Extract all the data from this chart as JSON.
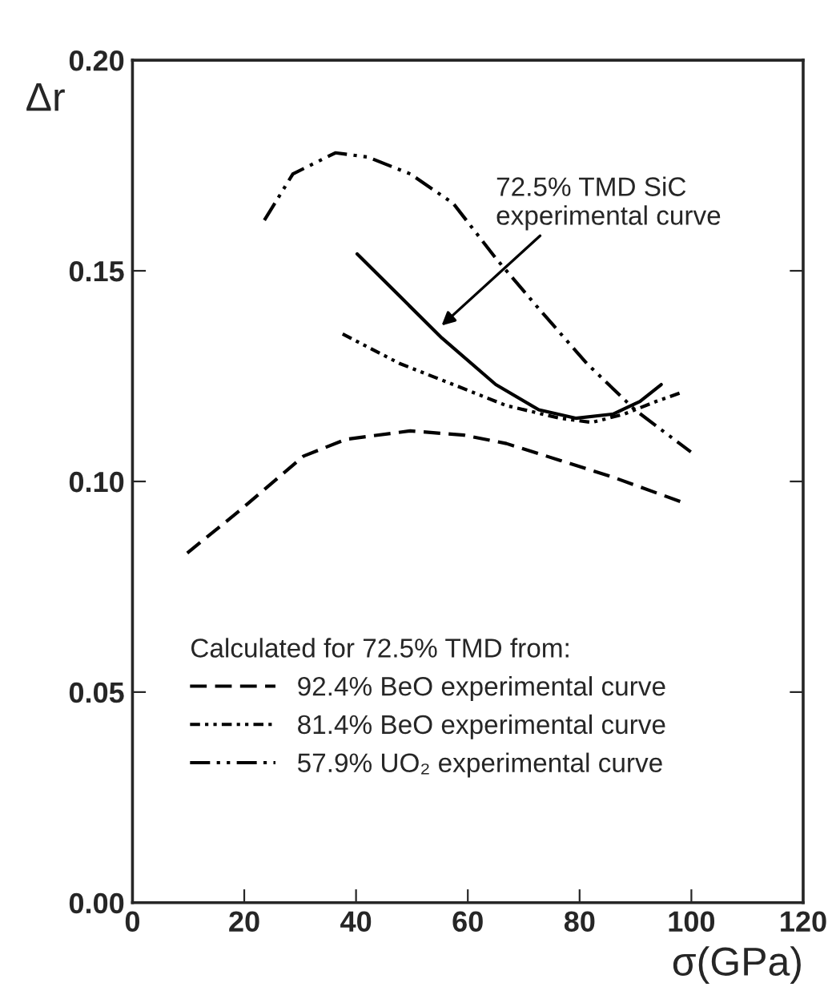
{
  "chart_data": {
    "type": "line",
    "xlabel": "σ(GPa)",
    "ylabel": "Δr",
    "legend_title": "Calculated for 72.5% TMD from:",
    "xlim": [
      0,
      120
    ],
    "xticks": [
      0,
      20,
      40,
      60,
      80,
      100,
      120
    ],
    "ylim": [
      0.0,
      0.2
    ],
    "yticks": [
      {
        "value": 0.0,
        "label": "0.00"
      },
      {
        "value": 0.05,
        "label": "0.05"
      },
      {
        "value": 0.1,
        "label": "0.10"
      },
      {
        "value": 0.15,
        "label": "0.15"
      },
      {
        "value": 0.2,
        "label": "0.20"
      }
    ],
    "grid": false,
    "legend": "bottom left",
    "series": [
      {
        "name": "92.4% BeO experimental curve",
        "color": "#000000",
        "line_style": "dashed",
        "x": [
          9.8,
          19.1,
          30.6,
          38.2,
          49.7,
          59.3,
          66.9,
          76.5,
          86.0,
          98.5
        ],
        "values": [
          0.083,
          0.093,
          0.106,
          0.11,
          0.112,
          0.111,
          0.109,
          0.105,
          0.101,
          0.095
        ]
      },
      {
        "name": "81.4% BeO experimental curve",
        "color": "#000000",
        "line_style": "dotted",
        "x": [
          37.6,
          47.8,
          57.4,
          66.9,
          76.5,
          82.2,
          88.0,
          93.7,
          98.0
        ],
        "values": [
          0.135,
          0.128,
          0.123,
          0.118,
          0.115,
          0.114,
          0.116,
          0.119,
          0.121
        ]
      },
      {
        "name": "57.9% UO₂ experimental curve",
        "color": "#000000",
        "line_style": "dashdot",
        "x": [
          23.6,
          28.7,
          36.3,
          42.1,
          49.7,
          57.4,
          65.0,
          72.7,
          81.3,
          89.9,
          99.9
        ],
        "values": [
          0.162,
          0.173,
          0.178,
          0.177,
          0.173,
          0.166,
          0.153,
          0.141,
          0.128,
          0.117,
          0.107
        ]
      },
      {
        "color": "#000000",
        "line_style": "solid",
        "x": [
          40.2,
          47.8,
          55.4,
          65.0,
          72.7,
          79.3,
          86.0,
          90.8,
          94.6
        ],
        "values": [
          0.154,
          0.144,
          0.134,
          0.123,
          0.117,
          0.115,
          0.116,
          0.119,
          0.123
        ]
      }
    ],
    "annotations": [
      {
        "text": "72.5% TMD SiC\nexperimental curve",
        "x": 55.3,
        "y": 0.137
      }
    ]
  }
}
